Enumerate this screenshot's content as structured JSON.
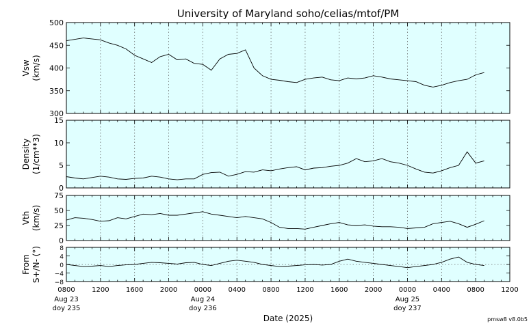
{
  "title": "University of Maryland  soho/celias/mtof/PM",
  "xlabel": "Date (2025)",
  "footer": "pmsw8 v8.0b5",
  "x_ticks": {
    "values": [
      0,
      4,
      8,
      12,
      16,
      20,
      24,
      28,
      32,
      36,
      40,
      44,
      48,
      52
    ],
    "labels": [
      "0800",
      "1200",
      "1600",
      "2000",
      "0000",
      "0400",
      "0800",
      "1200",
      "1600",
      "2000",
      "0000",
      "0400",
      "0800",
      "1200"
    ]
  },
  "day_labels": [
    {
      "hour": 0,
      "date": "Aug 23",
      "doy": "doy 235"
    },
    {
      "hour": 16,
      "date": "Aug 24",
      "doy": "doy 236"
    },
    {
      "hour": 40,
      "date": "Aug 25",
      "doy": "doy 237"
    }
  ],
  "colors": {
    "panel_bg": "#e0ffff",
    "line": "#000000",
    "grid": "#666666"
  },
  "chart_data": [
    {
      "type": "line",
      "ylabel": [
        "Vsw",
        "(km/s)"
      ],
      "ylim": [
        300,
        500
      ],
      "yticks": [
        300,
        350,
        400,
        450,
        500
      ],
      "x_range_hours": [
        0,
        52
      ],
      "grid": "vertical-dotted",
      "x": [
        0,
        2,
        4,
        5,
        6,
        7,
        8,
        9,
        10,
        11,
        12,
        13,
        14,
        15,
        16,
        17,
        18,
        19,
        20,
        21,
        22,
        23,
        24,
        25,
        26,
        27,
        28,
        29,
        30,
        31,
        32,
        33,
        34,
        35,
        36,
        37,
        38,
        39,
        40,
        41,
        42,
        43,
        44,
        45,
        46,
        47,
        48,
        49
      ],
      "y": [
        460,
        466,
        462,
        455,
        450,
        442,
        428,
        420,
        412,
        425,
        430,
        418,
        420,
        410,
        408,
        395,
        420,
        430,
        432,
        440,
        400,
        383,
        375,
        373,
        370,
        368,
        375,
        378,
        380,
        374,
        372,
        378,
        376,
        378,
        383,
        380,
        376,
        374,
        372,
        370,
        362,
        358,
        362,
        368,
        372,
        375,
        385,
        390
      ]
    },
    {
      "type": "line",
      "ylabel": [
        "Density",
        "(1/cm**3)"
      ],
      "ylim": [
        0,
        15
      ],
      "yticks": [
        0,
        5,
        10,
        15
      ],
      "x_range_hours": [
        0,
        52
      ],
      "grid": "vertical-dotted",
      "x": [
        0,
        1,
        2,
        3,
        4,
        5,
        6,
        7,
        8,
        9,
        10,
        11,
        12,
        13,
        14,
        15,
        16,
        17,
        18,
        19,
        20,
        21,
        22,
        23,
        24,
        25,
        26,
        27,
        28,
        29,
        30,
        31,
        32,
        33,
        34,
        35,
        36,
        37,
        38,
        39,
        40,
        41,
        42,
        43,
        44,
        45,
        46,
        47,
        48,
        49
      ],
      "y": [
        2.5,
        2.2,
        2.0,
        2.3,
        2.6,
        2.4,
        2.0,
        1.9,
        2.1,
        2.2,
        2.6,
        2.4,
        2.0,
        1.8,
        2.0,
        2.0,
        3.0,
        3.4,
        3.5,
        2.6,
        3.0,
        3.6,
        3.5,
        4.0,
        3.8,
        4.2,
        4.5,
        4.7,
        4.0,
        4.4,
        4.5,
        4.8,
        5.0,
        5.5,
        6.5,
        5.8,
        6.0,
        6.5,
        5.8,
        5.5,
        5.0,
        4.2,
        3.5,
        3.3,
        3.8,
        4.5,
        5.0,
        8.0,
        5.5,
        6.0
      ]
    },
    {
      "type": "line",
      "ylabel": [
        "Vth",
        "(km/s)"
      ],
      "ylim": [
        0,
        75
      ],
      "yticks": [
        0,
        25,
        50,
        75
      ],
      "x_range_hours": [
        0,
        52
      ],
      "grid": "vertical-dotted",
      "x": [
        0,
        1,
        2,
        3,
        4,
        5,
        6,
        7,
        8,
        9,
        10,
        11,
        12,
        13,
        14,
        15,
        16,
        17,
        18,
        19,
        20,
        21,
        22,
        23,
        24,
        25,
        26,
        27,
        28,
        29,
        30,
        31,
        32,
        33,
        34,
        35,
        36,
        37,
        38,
        39,
        40,
        41,
        42,
        43,
        44,
        45,
        46,
        47,
        48,
        49
      ],
      "y": [
        34,
        38,
        37,
        35,
        32,
        33,
        38,
        36,
        40,
        44,
        43,
        45,
        42,
        42,
        44,
        46,
        48,
        44,
        42,
        40,
        38,
        40,
        38,
        36,
        30,
        22,
        20,
        20,
        19,
        22,
        25,
        28,
        30,
        26,
        25,
        26,
        24,
        23,
        23,
        22,
        20,
        21,
        22,
        28,
        30,
        32,
        28,
        22,
        27,
        33
      ]
    },
    {
      "type": "line",
      "ylabel": [
        "From",
        "S+/N- (°)"
      ],
      "ylim": [
        -8,
        8
      ],
      "yticks": [
        -8,
        -4,
        0,
        4,
        8
      ],
      "x_range_hours": [
        0,
        52
      ],
      "grid": "vertical-dotted",
      "zero_line": true,
      "x": [
        0,
        1,
        2,
        3,
        4,
        5,
        6,
        7,
        8,
        9,
        10,
        11,
        12,
        13,
        14,
        15,
        16,
        17,
        18,
        19,
        20,
        21,
        22,
        23,
        24,
        25,
        26,
        27,
        28,
        29,
        30,
        31,
        32,
        33,
        34,
        35,
        36,
        37,
        38,
        39,
        40,
        41,
        42,
        43,
        44,
        45,
        46,
        47,
        48,
        49
      ],
      "y": [
        0.0,
        -0.5,
        -1.0,
        -0.8,
        -0.5,
        -1.0,
        -0.5,
        -0.2,
        0.0,
        0.5,
        1.0,
        0.8,
        0.5,
        0.2,
        0.8,
        1.0,
        0.0,
        -0.5,
        0.5,
        1.5,
        2.0,
        1.5,
        1.0,
        0.0,
        -0.5,
        -1.0,
        -0.8,
        -0.5,
        -0.2,
        0.0,
        -0.3,
        0.0,
        1.5,
        2.5,
        1.5,
        1.0,
        0.5,
        0.0,
        -0.5,
        -1.0,
        -1.5,
        -1.0,
        -0.5,
        0.0,
        1.0,
        2.5,
        3.5,
        1.0,
        0.0,
        -0.5
      ]
    }
  ]
}
